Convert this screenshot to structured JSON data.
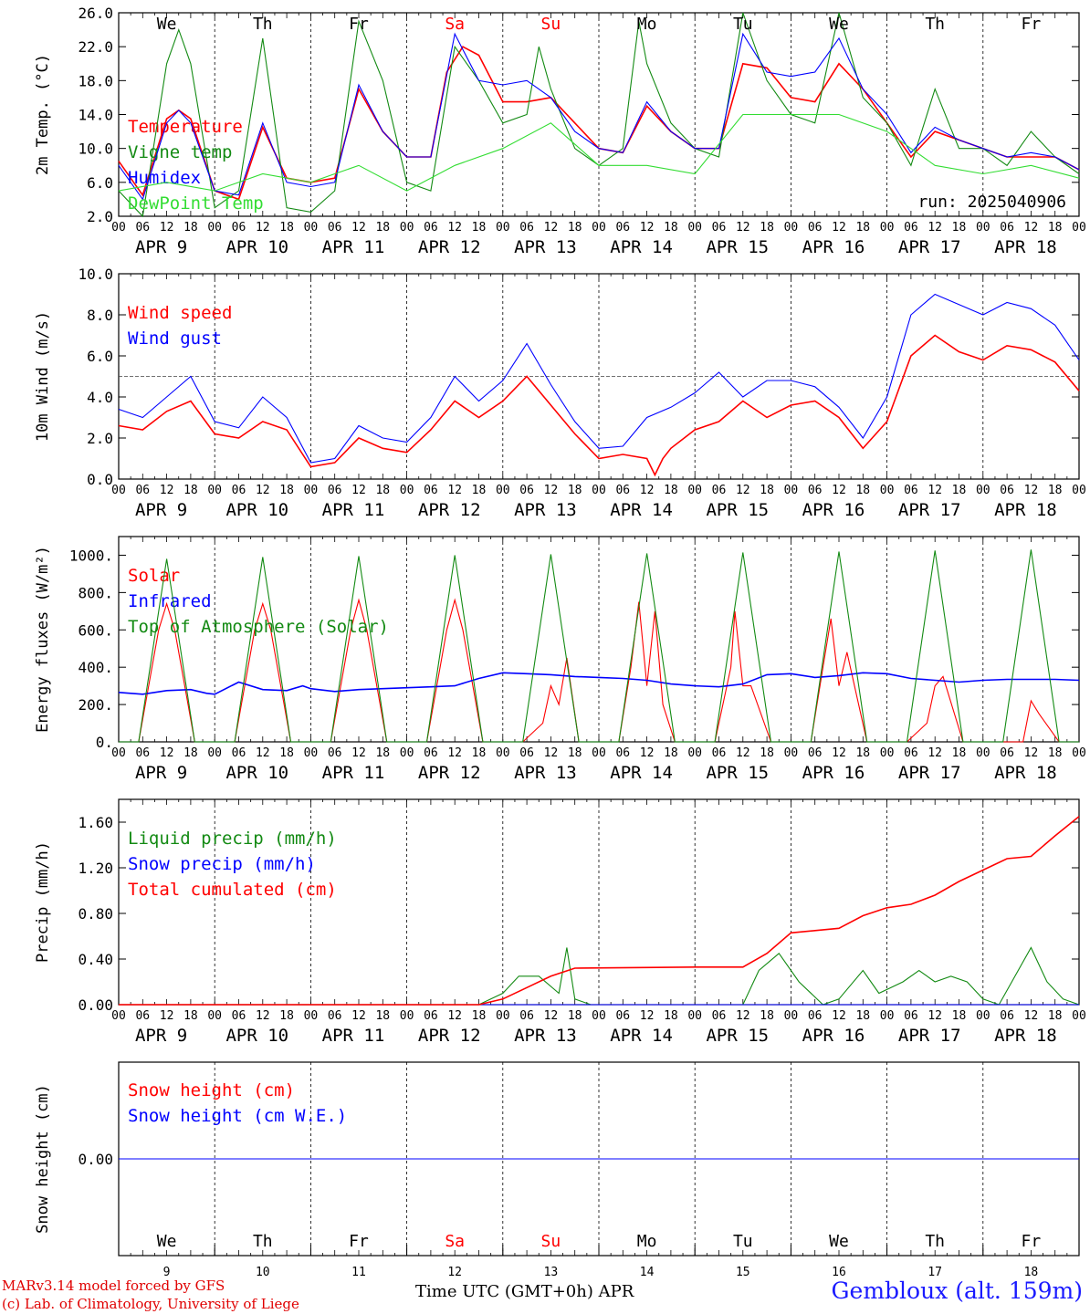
{
  "colors": {
    "red": "#ff0000",
    "dkgreen": "#138a13",
    "blue": "#0000ff",
    "ltgreen": "#33dd33",
    "black": "#000000"
  },
  "time_axis": {
    "days": [
      "APR 9",
      "APR 10",
      "APR 11",
      "APR 12",
      "APR 13",
      "APR 14",
      "APR 15",
      "APR 16",
      "APR 17",
      "APR 18"
    ],
    "hour_ticks": [
      "00",
      "06",
      "12",
      "18"
    ],
    "end_tick": "00",
    "weekdays": [
      "We",
      "Th",
      "Fr",
      "Sa",
      "Su",
      "Mo",
      "Tu",
      "We",
      "Th",
      "Fr"
    ],
    "weekday_colors": [
      "#000000",
      "#000000",
      "#000000",
      "#ff0000",
      "#ff0000",
      "#000000",
      "#000000",
      "#000000",
      "#000000",
      "#000000"
    ],
    "day_numbers": [
      "9",
      "10",
      "11",
      "12",
      "13",
      "14",
      "15",
      "16",
      "17",
      "18"
    ],
    "xlabel": "Time UTC (GMT+0h) APR"
  },
  "chart_data": [
    {
      "type": "line",
      "ylabel": "2m Temp. (°C)",
      "ylim": [
        2,
        26
      ],
      "yticks": [
        "2.0",
        "6.0",
        "10.0",
        "14.0",
        "18.0",
        "22.0",
        "26.0"
      ],
      "annotation": "run: 2025040906",
      "series": [
        {
          "name": "Temperature",
          "color": "#ff0000",
          "x": [
            0,
            6,
            12,
            15,
            18,
            24,
            30,
            36,
            42,
            48,
            54,
            60,
            66,
            72,
            78,
            82,
            86,
            90,
            96,
            102,
            108,
            114,
            118,
            120,
            126,
            132,
            138,
            144,
            150,
            156,
            162,
            168,
            174,
            180,
            186,
            192,
            198,
            204,
            210,
            216,
            222,
            228,
            234,
            240
          ],
          "y": [
            8.5,
            4.5,
            13.5,
            14.5,
            13.5,
            5,
            4,
            12.5,
            6.5,
            6,
            6.5,
            17,
            12,
            9,
            9,
            19,
            22,
            21,
            15.5,
            15.5,
            16,
            13,
            11,
            10,
            9.5,
            15,
            12,
            10,
            10,
            20,
            19.5,
            16,
            15.5,
            20,
            17,
            13,
            9,
            12,
            11,
            10,
            9,
            9,
            9,
            7.5
          ]
        },
        {
          "name": "Vigne temp",
          "color": "#138a13",
          "x": [
            0,
            6,
            12,
            15,
            18,
            24,
            30,
            36,
            42,
            48,
            54,
            60,
            66,
            72,
            78,
            84,
            90,
            96,
            102,
            105,
            108,
            114,
            120,
            126,
            130,
            132,
            138,
            144,
            150,
            156,
            162,
            168,
            174,
            180,
            186,
            192,
            198,
            204,
            210,
            216,
            222,
            228,
            234,
            240
          ],
          "y": [
            5,
            2,
            20,
            24,
            20,
            3,
            5,
            23,
            3,
            2.5,
            5,
            25,
            18,
            6,
            5,
            22,
            18,
            13,
            14,
            22,
            17,
            10,
            8,
            10,
            25,
            20,
            13,
            10,
            9,
            26,
            18,
            14,
            13,
            26,
            16,
            13,
            8,
            17,
            10,
            10,
            8,
            12,
            9,
            7
          ]
        },
        {
          "name": "Humidex",
          "color": "#0000ff",
          "x": [
            0,
            6,
            12,
            15,
            18,
            24,
            30,
            36,
            42,
            48,
            54,
            60,
            66,
            72,
            78,
            84,
            90,
            96,
            102,
            108,
            114,
            120,
            126,
            132,
            138,
            144,
            150,
            156,
            162,
            168,
            174,
            180,
            186,
            192,
            198,
            204,
            210,
            216,
            222,
            228,
            234,
            240
          ],
          "y": [
            8,
            4,
            13,
            14.5,
            13,
            5,
            4.5,
            13,
            6,
            5.5,
            6,
            17.5,
            12,
            9,
            9,
            23.5,
            18,
            17.5,
            18,
            16,
            12,
            10,
            9.5,
            15.5,
            12,
            10,
            10,
            23.5,
            19,
            18.5,
            19,
            23,
            17,
            14,
            9.5,
            12.5,
            11,
            10,
            9,
            9.5,
            9,
            7.5
          ]
        },
        {
          "name": "DewPoint Temp",
          "color": "#33dd33",
          "x": [
            0,
            12,
            24,
            36,
            48,
            54,
            60,
            72,
            84,
            96,
            108,
            120,
            132,
            144,
            156,
            168,
            180,
            192,
            204,
            216,
            228,
            240
          ],
          "y": [
            5,
            6,
            5,
            7,
            6,
            7,
            8,
            5,
            8,
            10,
            13,
            8,
            8,
            7,
            14,
            14,
            14,
            12,
            8,
            7,
            8,
            6.5
          ]
        }
      ]
    },
    {
      "type": "line",
      "ylabel": "10m Wind (m/s)",
      "ylim": [
        0,
        10
      ],
      "yticks": [
        "0.0",
        "2.0",
        "4.0",
        "6.0",
        "8.0",
        "10.0"
      ],
      "ref_line": 5,
      "series": [
        {
          "name": "Wind speed",
          "color": "#ff0000",
          "x": [
            0,
            6,
            12,
            18,
            24,
            30,
            36,
            42,
            48,
            54,
            60,
            66,
            72,
            78,
            84,
            90,
            96,
            102,
            108,
            114,
            120,
            126,
            132,
            134,
            136,
            138,
            144,
            150,
            156,
            162,
            168,
            174,
            180,
            186,
            192,
            198,
            204,
            210,
            216,
            222,
            228,
            234,
            240
          ],
          "y": [
            2.6,
            2.4,
            3.3,
            3.8,
            2.2,
            2.0,
            2.8,
            2.4,
            0.6,
            0.8,
            2.0,
            1.5,
            1.3,
            2.4,
            3.8,
            3.0,
            3.8,
            5.0,
            3.6,
            2.2,
            1.0,
            1.2,
            1.0,
            0.2,
            1.0,
            1.5,
            2.4,
            2.8,
            3.8,
            3.0,
            3.6,
            3.8,
            3.0,
            1.5,
            2.8,
            6.0,
            7.0,
            6.2,
            5.8,
            6.5,
            6.3,
            5.7,
            4.3
          ]
        },
        {
          "name": "Wind gust",
          "color": "#0000ff",
          "x": [
            0,
            6,
            12,
            18,
            24,
            30,
            36,
            42,
            48,
            54,
            60,
            66,
            72,
            78,
            84,
            90,
            96,
            102,
            108,
            114,
            120,
            126,
            132,
            138,
            144,
            150,
            156,
            162,
            168,
            174,
            180,
            186,
            192,
            198,
            204,
            210,
            216,
            222,
            228,
            234,
            240
          ],
          "y": [
            3.4,
            3.0,
            4.0,
            5.0,
            2.8,
            2.5,
            4.0,
            3.0,
            0.8,
            1.0,
            2.6,
            2.0,
            1.8,
            3.0,
            5.0,
            3.8,
            4.8,
            6.6,
            4.6,
            2.8,
            1.5,
            1.6,
            3.0,
            3.5,
            4.2,
            5.2,
            4.0,
            4.8,
            4.8,
            4.5,
            3.5,
            2.0,
            4.0,
            8.0,
            9.0,
            8.5,
            8.0,
            8.6,
            8.3,
            7.5,
            5.8
          ]
        }
      ]
    },
    {
      "type": "line",
      "ylabel": "Energy fluxes (W/m²)",
      "ylim": [
        0,
        1100
      ],
      "yticks": [
        "0.",
        "200.",
        "400.",
        "600.",
        "800.",
        "1000."
      ],
      "series": [
        {
          "name": "Solar",
          "color": "#ff0000",
          "x": [
            0,
            5,
            10,
            12,
            14,
            19,
            24,
            29,
            34,
            36,
            38,
            43,
            48,
            53,
            58,
            60,
            62,
            67,
            72,
            77,
            82,
            84,
            86,
            91,
            96,
            101,
            106,
            108,
            110,
            112,
            115,
            120,
            125,
            128,
            130,
            132,
            134,
            136,
            139,
            144,
            149,
            153,
            154,
            156,
            158,
            163,
            168,
            173,
            176,
            178,
            180,
            182,
            187,
            192,
            197,
            202,
            204,
            206,
            211,
            216,
            221,
            226,
            228,
            230,
            235,
            240
          ],
          "y": [
            0,
            0,
            600,
            740,
            600,
            0,
            0,
            0,
            600,
            740,
            600,
            0,
            0,
            0,
            600,
            760,
            600,
            0,
            0,
            0,
            600,
            760,
            600,
            0,
            0,
            0,
            100,
            300,
            200,
            450,
            0,
            0,
            0,
            400,
            750,
            300,
            700,
            200,
            0,
            0,
            0,
            400,
            700,
            300,
            300,
            0,
            0,
            0,
            400,
            660,
            300,
            480,
            0,
            0,
            0,
            100,
            300,
            350,
            0,
            0,
            0,
            0,
            220,
            150,
            0,
            0
          ]
        },
        {
          "name": "Infrared",
          "color": "#0000ff",
          "x": [
            0,
            6,
            12,
            18,
            22,
            24,
            30,
            36,
            42,
            46,
            48,
            54,
            60,
            66,
            72,
            78,
            84,
            90,
            96,
            102,
            108,
            114,
            120,
            126,
            132,
            138,
            144,
            150,
            156,
            162,
            168,
            174,
            180,
            186,
            192,
            198,
            204,
            210,
            216,
            222,
            228,
            234,
            240
          ],
          "y": [
            265,
            255,
            275,
            280,
            260,
            255,
            320,
            280,
            275,
            300,
            285,
            270,
            280,
            285,
            290,
            295,
            300,
            340,
            370,
            365,
            360,
            350,
            345,
            340,
            330,
            310,
            300,
            295,
            310,
            360,
            365,
            345,
            355,
            370,
            365,
            340,
            330,
            320,
            330,
            335,
            335,
            335,
            330
          ]
        },
        {
          "name": "Top of Atmosphere (Solar)",
          "color": "#138a13",
          "x": [
            0,
            5,
            12,
            19,
            24,
            29,
            36,
            43,
            48,
            53,
            60,
            67,
            72,
            77,
            84,
            91,
            96,
            101,
            108,
            115,
            120,
            125,
            132,
            139,
            144,
            149,
            156,
            163,
            168,
            173,
            180,
            187,
            192,
            197,
            204,
            211,
            216,
            221,
            228,
            235,
            240
          ],
          "y": [
            0,
            0,
            980,
            0,
            0,
            0,
            990,
            0,
            0,
            0,
            995,
            0,
            0,
            0,
            1000,
            0,
            0,
            0,
            1005,
            0,
            0,
            0,
            1010,
            0,
            0,
            0,
            1015,
            0,
            0,
            0,
            1020,
            0,
            0,
            0,
            1025,
            0,
            0,
            0,
            1030,
            0,
            0
          ]
        }
      ]
    },
    {
      "type": "line",
      "ylabel": "Precip (mm/h)",
      "ylim": [
        0,
        1.8
      ],
      "yticks": [
        "0.00",
        "0.40",
        "0.80",
        "1.20",
        "1.60"
      ],
      "series": [
        {
          "name": "Liquid precip (mm/h)",
          "color": "#138a13",
          "x": [
            0,
            90,
            96,
            100,
            105,
            110,
            112,
            114,
            118,
            120,
            144,
            156,
            160,
            165,
            170,
            176,
            180,
            186,
            190,
            196,
            200,
            204,
            208,
            212,
            216,
            220,
            228,
            232,
            236,
            240
          ],
          "y": [
            0,
            0,
            0.1,
            0.25,
            0.25,
            0.1,
            0.5,
            0.05,
            0,
            0,
            0,
            0,
            0.3,
            0.45,
            0.2,
            0,
            0.05,
            0.3,
            0.1,
            0.2,
            0.3,
            0.2,
            0.25,
            0.2,
            0.05,
            0,
            0.5,
            0.2,
            0.05,
            0
          ]
        },
        {
          "name": "Snow precip (mm/h)",
          "color": "#0000ff",
          "x": [
            0,
            240
          ],
          "y": [
            0,
            0
          ]
        },
        {
          "name": "Total cumulated (cm)",
          "color": "#ff0000",
          "x": [
            0,
            90,
            96,
            102,
            108,
            114,
            144,
            156,
            162,
            168,
            174,
            180,
            186,
            192,
            198,
            204,
            210,
            216,
            222,
            228,
            234,
            240
          ],
          "y": [
            0,
            0,
            0.05,
            0.15,
            0.25,
            0.32,
            0.33,
            0.33,
            0.45,
            0.63,
            0.65,
            0.67,
            0.78,
            0.85,
            0.88,
            0.96,
            1.08,
            1.18,
            1.28,
            1.3,
            1.48,
            1.65
          ]
        }
      ]
    },
    {
      "type": "line",
      "ylabel": "Snow height (cm)",
      "ylim": [
        -1,
        1
      ],
      "yticks": [
        "0.00"
      ],
      "series": [
        {
          "name": "Snow height (cm)",
          "color": "#ff0000",
          "x": [
            0,
            240
          ],
          "y": [
            0,
            0
          ]
        },
        {
          "name": "Snow height (cm W.E.)",
          "color": "#0000ff",
          "x": [
            0,
            240
          ],
          "y": [
            0,
            0
          ]
        }
      ]
    }
  ],
  "footer": {
    "model_line": "MARv3.14 model forced by GFS",
    "credit_line": "(c) Lab. of Climatology, University of Liege",
    "station": "Gembloux (alt. 159m)"
  }
}
